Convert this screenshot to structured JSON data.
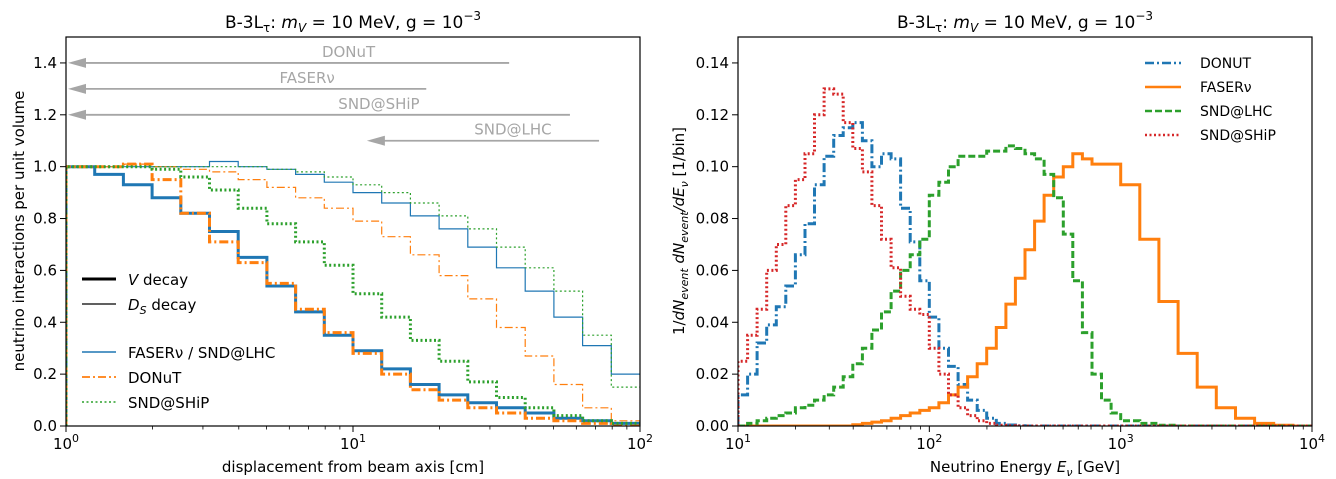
{
  "chart_data": [
    {
      "type": "step",
      "title": "B-3Lτ: m_V = 10 MeV, g = 10^-3",
      "title_parts": {
        "prefix": "B-3L",
        "sub": "τ",
        "sep": ": ",
        "m": "m",
        "msub": "V",
        "mid": " = 10 MeV, g = 10",
        "exp": "−3"
      },
      "xlabel": "displacement from beam axis [cm]",
      "ylabel": "neutrino interactions per unit volume",
      "xscale": "log",
      "xlim": [
        1,
        100
      ],
      "ylim": [
        0,
        1.5
      ],
      "xticks": [
        {
          "v": 1,
          "base": "10",
          "exp": "0"
        },
        {
          "v": 10,
          "base": "10",
          "exp": "1"
        },
        {
          "v": 100,
          "base": "10",
          "exp": "2"
        }
      ],
      "yticks": [
        "0.0",
        "0.2",
        "0.4",
        "0.6",
        "0.8",
        "1.0",
        "1.2",
        "1.4"
      ],
      "edges": [
        1.0,
        1.259,
        1.585,
        1.995,
        2.512,
        3.162,
        3.981,
        5.012,
        6.31,
        7.943,
        10.0,
        12.59,
        15.85,
        19.95,
        25.12,
        31.62,
        39.81,
        50.12,
        63.1,
        79.43,
        100.0
      ],
      "series": [
        {
          "name": "FASERν / SND@LHC",
          "decay": "V",
          "color": "#1f77b4",
          "style": "solid",
          "width": 3,
          "values": [
            1.0,
            0.97,
            0.93,
            0.88,
            0.82,
            0.75,
            0.65,
            0.54,
            0.44,
            0.35,
            0.29,
            0.22,
            0.16,
            0.12,
            0.09,
            0.07,
            0.05,
            0.03,
            0.02,
            0.01
          ]
        },
        {
          "name": "FASERν / SND@LHC",
          "decay": "D_S",
          "color": "#1f77b4",
          "style": "solid",
          "width": 1.2,
          "values": [
            1.0,
            1.0,
            1.0,
            1.0,
            1.0,
            1.02,
            1.0,
            0.99,
            0.97,
            0.94,
            0.9,
            0.86,
            0.81,
            0.76,
            0.69,
            0.61,
            0.52,
            0.42,
            0.31,
            0.2
          ]
        },
        {
          "name": "DONuT",
          "decay": "V",
          "color": "#ff7f0e",
          "style": "dashdot",
          "width": 3,
          "values": [
            1.0,
            1.0,
            1.01,
            0.95,
            0.82,
            0.71,
            0.63,
            0.55,
            0.45,
            0.36,
            0.28,
            0.2,
            0.14,
            0.1,
            0.07,
            0.05,
            0.03,
            0.02,
            0.01,
            0.0
          ]
        },
        {
          "name": "DONuT",
          "decay": "D_S",
          "color": "#ff7f0e",
          "style": "dashdot",
          "width": 1.2,
          "values": [
            1.0,
            1.0,
            1.01,
            1.0,
            0.99,
            0.98,
            0.95,
            0.92,
            0.88,
            0.84,
            0.79,
            0.73,
            0.66,
            0.58,
            0.49,
            0.38,
            0.27,
            0.16,
            0.07,
            0.02
          ]
        },
        {
          "name": "SND@SHiP",
          "decay": "V",
          "color": "#2ca02c",
          "style": "dotted",
          "width": 3,
          "values": [
            1.0,
            1.0,
            1.0,
            0.99,
            0.96,
            0.91,
            0.84,
            0.78,
            0.71,
            0.62,
            0.51,
            0.42,
            0.33,
            0.25,
            0.17,
            0.11,
            0.07,
            0.04,
            0.02,
            0.01
          ]
        },
        {
          "name": "SND@SHiP",
          "decay": "D_S",
          "color": "#2ca02c",
          "style": "dotted",
          "width": 1.2,
          "values": [
            1.0,
            1.0,
            1.0,
            1.0,
            1.0,
            1.0,
            1.0,
            0.99,
            0.98,
            0.96,
            0.93,
            0.9,
            0.86,
            0.81,
            0.76,
            0.69,
            0.61,
            0.52,
            0.35,
            0.15
          ]
        }
      ],
      "arrows": [
        {
          "label": "DONuT",
          "x_start": 35,
          "y": 1.4
        },
        {
          "label": "FASERν",
          "x_start": 18,
          "y": 1.3
        },
        {
          "label": "SND@SHiP",
          "x_start": 57,
          "y": 1.2
        },
        {
          "label": "SND@LHC",
          "x_start": 72,
          "y": 1.1,
          "x_end": 11
        }
      ],
      "legend": {
        "placement": "lower-left",
        "decay_entries": [
          {
            "symbol": "V",
            "text": " decay"
          },
          {
            "symbol": "D",
            "sub": "S",
            "text": " decay"
          }
        ],
        "experiment_entries": [
          "FASERν / SND@LHC",
          "DONuT",
          "SND@SHiP"
        ]
      },
      "grid": false
    },
    {
      "type": "step",
      "title": "B-3Lτ: m_V = 10 MeV, g = 10^-3",
      "xlabel": "Neutrino Energy E_ν [GeV]",
      "xlabel_parts": {
        "prefix": "Neutrino Energy ",
        "sym": "E",
        "sub": "ν",
        "suffix": " [GeV]"
      },
      "ylabel": "1/dN_event dN_event/dE_ν [1/bin]",
      "xscale": "log",
      "xlim": [
        10,
        10000
      ],
      "ylim": [
        0,
        0.15
      ],
      "xticks": [
        {
          "v": 10,
          "base": "10",
          "exp": "1"
        },
        {
          "v": 100,
          "base": "10",
          "exp": "2"
        },
        {
          "v": 1000,
          "base": "10",
          "exp": "3"
        },
        {
          "v": 10000,
          "base": "10",
          "exp": "4"
        }
      ],
      "yticks": [
        "0.00",
        "0.02",
        "0.04",
        "0.06",
        "0.08",
        "0.10",
        "0.12",
        "0.14"
      ],
      "edges": [
        10.0,
        11.22,
        12.59,
        14.13,
        15.85,
        17.78,
        19.95,
        22.39,
        25.12,
        28.18,
        31.62,
        35.48,
        39.81,
        44.67,
        50.12,
        56.23,
        63.1,
        70.79,
        79.43,
        89.13,
        100.0,
        112.2,
        125.9,
        141.3,
        158.5,
        177.8,
        199.5,
        223.9,
        251.2,
        281.8,
        316.2,
        354.8,
        398.1,
        446.7,
        501.2,
        562.3,
        631.0,
        707.9,
        794.3,
        891.3,
        1000.0,
        1259.0,
        1585.0,
        1995.0,
        2512.0,
        3162.0,
        3981.0,
        5012.0,
        6310.0,
        7943.0,
        10000.0
      ],
      "series": [
        {
          "name": "DONUT",
          "color": "#1f77b4",
          "style": "dashdot",
          "values": [
            0.012,
            0.02,
            0.032,
            0.039,
            0.046,
            0.054,
            0.066,
            0.078,
            0.093,
            0.104,
            0.112,
            0.115,
            0.117,
            0.11,
            0.1,
            0.105,
            0.103,
            0.084,
            0.071,
            0.056,
            0.042,
            0.03,
            0.023,
            0.016,
            0.01,
            0.006,
            0.003,
            0.001,
            0.0004,
            0.0001,
            0,
            0,
            0,
            0,
            0,
            0,
            0,
            0,
            0,
            0,
            0,
            0,
            0,
            0,
            0,
            0,
            0,
            0,
            0,
            0
          ]
        },
        {
          "name": "FASERν",
          "color": "#ff7f0e",
          "style": "solid",
          "values": [
            0,
            0,
            0,
            0,
            0,
            0,
            0,
            0,
            0,
            0,
            0,
            0,
            0.0005,
            0.001,
            0.0015,
            0.002,
            0.003,
            0.004,
            0.005,
            0.006,
            0.007,
            0.009,
            0.012,
            0.015,
            0.019,
            0.024,
            0.03,
            0.038,
            0.047,
            0.057,
            0.068,
            0.079,
            0.089,
            0.096,
            0.1,
            0.105,
            0.103,
            0.101,
            0.101,
            0.101,
            0.093,
            0.072,
            0.048,
            0.028,
            0.015,
            0.007,
            0.003,
            0.001,
            0.0003,
            0
          ]
        },
        {
          "name": "SND@LHC",
          "color": "#2ca02c",
          "style": "dashed",
          "values": [
            0,
            0.001,
            0.002,
            0.003,
            0.004,
            0.005,
            0.007,
            0.008,
            0.01,
            0.012,
            0.015,
            0.019,
            0.024,
            0.03,
            0.037,
            0.044,
            0.052,
            0.06,
            0.066,
            0.072,
            0.089,
            0.094,
            0.1,
            0.104,
            0.104,
            0.104,
            0.106,
            0.106,
            0.108,
            0.107,
            0.105,
            0.103,
            0.097,
            0.088,
            0.074,
            0.056,
            0.036,
            0.02,
            0.01,
            0.005,
            0.002,
            0.001,
            0.0003,
            0,
            0,
            0,
            0,
            0,
            0,
            0
          ]
        },
        {
          "name": "SND@SHiP",
          "color": "#d62728",
          "style": "dotted",
          "values": [
            0.025,
            0.035,
            0.045,
            0.06,
            0.07,
            0.085,
            0.095,
            0.105,
            0.12,
            0.13,
            0.128,
            0.117,
            0.107,
            0.098,
            0.085,
            0.072,
            0.061,
            0.05,
            0.045,
            0.043,
            0.03,
            0.02,
            0.012,
            0.007,
            0.004,
            0.002,
            0.001,
            0.0003,
            0.0001,
            0,
            0,
            0,
            0,
            0,
            0,
            0,
            0,
            0,
            0,
            0,
            0,
            0,
            0,
            0,
            0,
            0,
            0,
            0,
            0,
            0
          ]
        }
      ],
      "legend": {
        "placement": "top-right",
        "entries": [
          "DONUT",
          "FASERν",
          "SND@LHC",
          "SND@SHiP"
        ]
      },
      "grid": false
    }
  ]
}
